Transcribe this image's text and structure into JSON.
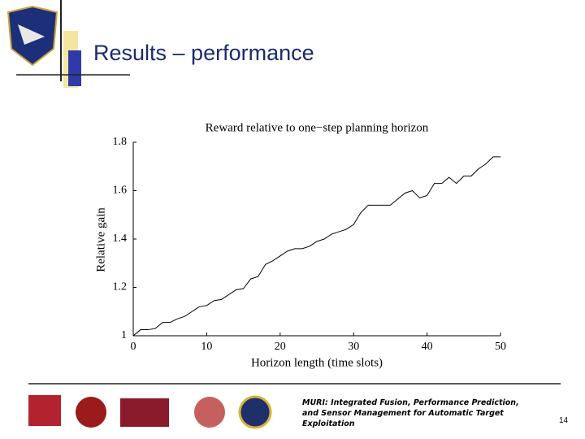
{
  "slide": {
    "title": "Results – performance",
    "footer": "MURI: Integrated Fusion, Performance Prediction, and Sensor Management for Automatic Target Exploitation",
    "page_number": 14
  },
  "chart_data": {
    "type": "line",
    "title": "Reward relative to one−step planning horizon",
    "x_label": "Horizon length (time slots)",
    "y_label": "Relative gain",
    "x": [
      0,
      1,
      2,
      3,
      4,
      5,
      6,
      7,
      8,
      9,
      10,
      11,
      12,
      13,
      14,
      15,
      16,
      17,
      18,
      19,
      20,
      21,
      22,
      23,
      24,
      25,
      26,
      27,
      28,
      29,
      30,
      31,
      32,
      33,
      34,
      35,
      36,
      37,
      38,
      39,
      40,
      41,
      42,
      43,
      44,
      45,
      46,
      47,
      48,
      49,
      50
    ],
    "values": [
      1.0,
      1.025,
      1.025,
      1.03,
      1.055,
      1.055,
      1.07,
      1.08,
      1.1,
      1.12,
      1.125,
      1.145,
      1.15,
      1.17,
      1.19,
      1.195,
      1.235,
      1.245,
      1.295,
      1.31,
      1.33,
      1.35,
      1.36,
      1.36,
      1.37,
      1.39,
      1.4,
      1.42,
      1.43,
      1.44,
      1.46,
      1.51,
      1.54,
      1.54,
      1.54,
      1.54,
      1.565,
      1.59,
      1.6,
      1.57,
      1.58,
      1.63,
      1.63,
      1.655,
      1.63,
      1.66,
      1.66,
      1.69,
      1.71,
      1.74,
      1.74
    ],
    "color": "#000000",
    "xlim": [
      0,
      50
    ],
    "xticks": [
      0,
      10,
      20,
      30,
      40,
      50
    ],
    "ylim": [
      1,
      1.8
    ],
    "yticks": [
      1,
      1.2,
      1.4,
      1.6,
      1.8
    ]
  }
}
